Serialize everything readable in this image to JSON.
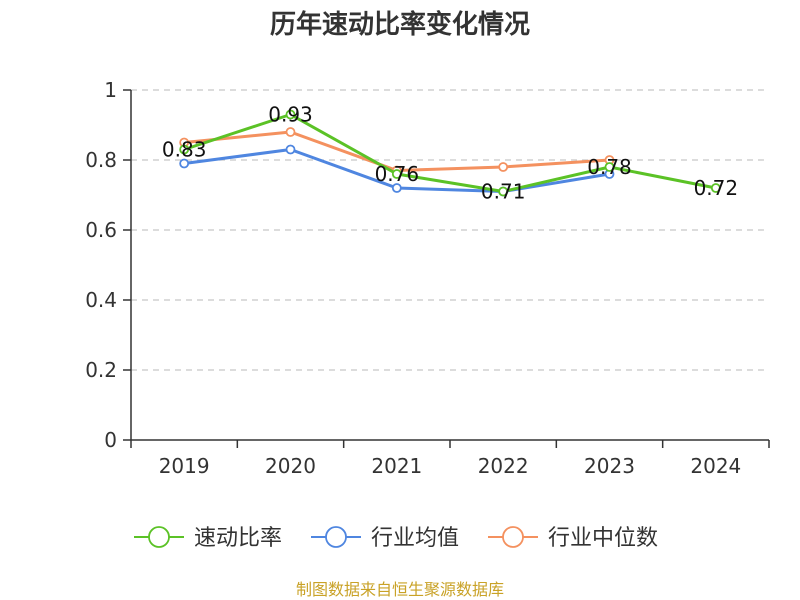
{
  "chart_data": {
    "type": "line",
    "title": "历年速动比率变化情况",
    "categories": [
      "2019",
      "2020",
      "2021",
      "2022",
      "2023",
      "2024"
    ],
    "ylim": [
      0,
      1
    ],
    "yticks": [
      "0",
      "0.2",
      "0.4",
      "0.6",
      "0.8",
      "1"
    ],
    "grid": true,
    "legend_position": "bottom",
    "series": [
      {
        "name": "速动比率",
        "color": "#5bc226",
        "values": [
          0.83,
          0.93,
          0.76,
          0.71,
          0.78,
          0.72
        ],
        "labels": [
          "0.83",
          "0.93",
          "0.76",
          "0.71",
          "0.78",
          "0.72"
        ]
      },
      {
        "name": "行业均值",
        "color": "#4f86e0",
        "values": [
          0.79,
          0.83,
          0.72,
          0.71,
          0.76,
          null
        ]
      },
      {
        "name": "行业中位数",
        "color": "#f4915f",
        "values": [
          0.85,
          0.88,
          0.77,
          0.78,
          0.8,
          null
        ]
      }
    ]
  },
  "source_text": "制图数据来自恒生聚源数据库"
}
